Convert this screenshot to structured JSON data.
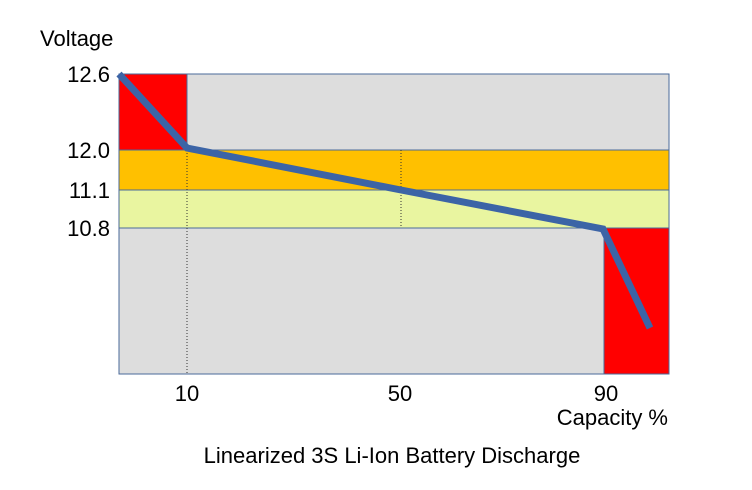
{
  "chart_data": {
    "type": "line",
    "title": "Linearized 3S Li-Ion Battery Discharge",
    "ylabel": "Voltage",
    "xlabel": "Capacity %",
    "xlim": [
      0,
      100
    ],
    "y_ticks": [
      "12.6",
      "12.0",
      "11.1",
      "10.8"
    ],
    "x_ticks": [
      "10",
      "50",
      "90"
    ],
    "series": [
      {
        "color": "#3c64a6",
        "points": [
          {
            "x": 0,
            "y": 12.6
          },
          {
            "x": 10,
            "y": 12.0
          },
          {
            "x": 50,
            "y": 11.1
          },
          {
            "x": 90,
            "y": 10.8
          },
          {
            "x": 98,
            "y": 9.6
          }
        ]
      }
    ],
    "bands": [
      {
        "region": "top-left warning",
        "color": "#ff0000"
      },
      {
        "region": "upper band 12.0-11.1",
        "color": "#ffc000"
      },
      {
        "region": "lower band 11.1-10.8",
        "color": "#e9f5a0"
      },
      {
        "region": "bottom-right warning",
        "color": "#ff0000"
      }
    ],
    "plot_background": "#dddddd",
    "grid_lines": "dotted verticals at 10 and 50"
  }
}
